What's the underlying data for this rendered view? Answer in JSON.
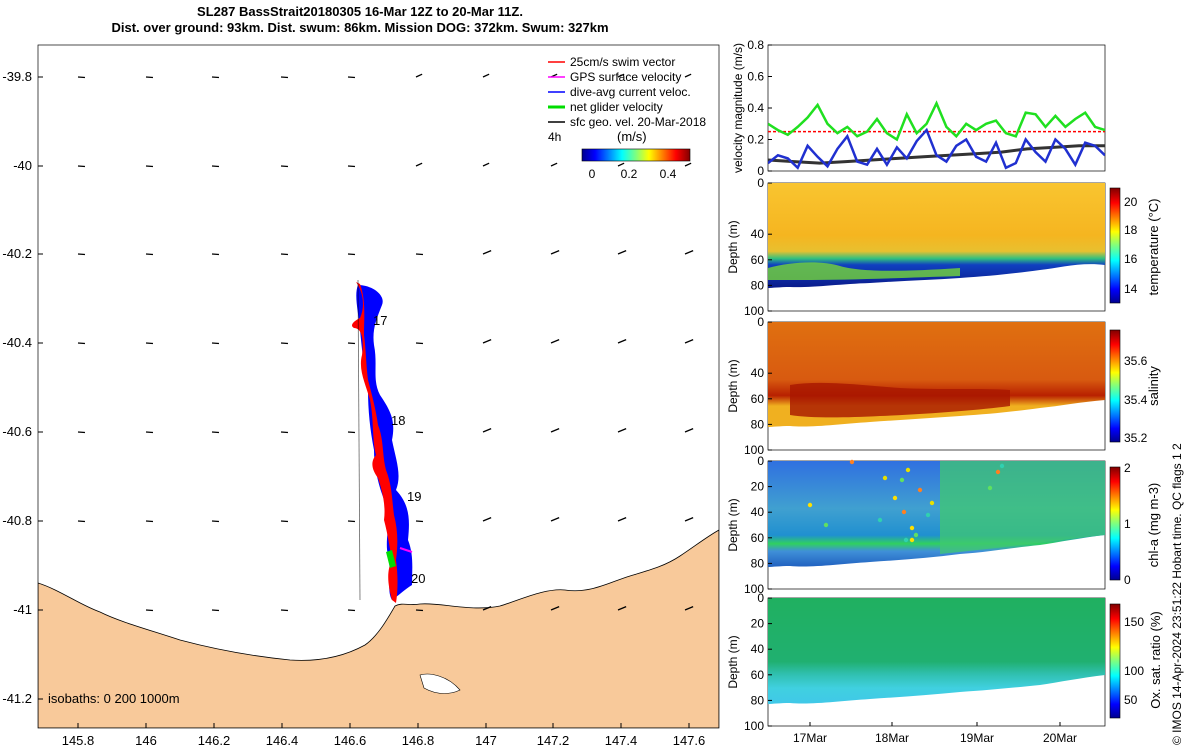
{
  "title": {
    "line1": "SL287 BassStrait20180305 16-Mar 12Z to 20-Mar 11Z.",
    "line2": "Dist. over ground: 93km. Dist. swum: 86km. Mission DOG: 372km. Swum: 327km"
  },
  "map": {
    "legend": {
      "swim_vector": "25cm/s swim vector",
      "gps_velocity": "GPS surface velocity",
      "dive_avg": "dive-avg current veloc.",
      "net_velocity": "net glider velocity",
      "sfc_geo": "sfc geo. vel. 20-Mar-2018",
      "interval": "4h",
      "colorbar_label": "(m/s)",
      "colorbar_ticks": [
        "0",
        "0.2",
        "0.4"
      ]
    },
    "isobaths": "isobaths: 0   200  1000m",
    "day_labels": [
      "17",
      "18",
      "19",
      "20"
    ],
    "x_ticks": [
      "145.8",
      "146",
      "146.2",
      "146.4",
      "146.6",
      "146.8",
      "147",
      "147.2",
      "147.4",
      "147.6"
    ],
    "y_ticks": [
      "-39.8",
      "-40",
      "-40.2",
      "-40.4",
      "-40.6",
      "-40.8",
      "-41",
      "-41.2"
    ],
    "colors": {
      "land": "#f8c99a",
      "swim": "#ff0000",
      "dive": "#0000ff",
      "gps": "#ff00ff",
      "net": "#00dd00"
    }
  },
  "panels": {
    "velocity": {
      "ylabel": "velocity magnitude (m/s)",
      "y_ticks": [
        "0",
        "0.2",
        "0.4",
        "0.6",
        "0.8"
      ],
      "swim_level": 0.25,
      "net_series": [
        0.3,
        0.26,
        0.23,
        0.28,
        0.34,
        0.42,
        0.3,
        0.24,
        0.28,
        0.22,
        0.25,
        0.33,
        0.24,
        0.2,
        0.36,
        0.24,
        0.3,
        0.43,
        0.28,
        0.22,
        0.3,
        0.26,
        0.3,
        0.32,
        0.24,
        0.22,
        0.37,
        0.36,
        0.28,
        0.35,
        0.28,
        0.33,
        0.37,
        0.28,
        0.26
      ],
      "dive_series": [
        0.05,
        0.1,
        0.08,
        0.02,
        0.16,
        0.09,
        0.03,
        0.14,
        0.22,
        0.06,
        0.04,
        0.14,
        0.04,
        0.15,
        0.08,
        0.19,
        0.26,
        0.1,
        0.06,
        0.16,
        0.2,
        0.09,
        0.06,
        0.18,
        0.02,
        0.05,
        0.2,
        0.12,
        0.06,
        0.2,
        0.14,
        0.04,
        0.18,
        0.16,
        0.1
      ],
      "geo_series": [
        0.07,
        0.06,
        0.05,
        0.06,
        0.07,
        0.08,
        0.09,
        0.1,
        0.11,
        0.12,
        0.14,
        0.15,
        0.16,
        0.16
      ]
    },
    "temperature": {
      "label": "temperature (°C)",
      "ticks": [
        "14",
        "16",
        "18",
        "20"
      ]
    },
    "salinity": {
      "label": "salinity",
      "ticks": [
        "35.2",
        "35.4",
        "35.6"
      ]
    },
    "chla": {
      "label": "chl-a (mg m-3)",
      "ticks": [
        "0",
        "1",
        "2"
      ]
    },
    "oxygen": {
      "label": "Ox. sat. ratio (%)",
      "ticks": [
        "50",
        "100",
        "150"
      ]
    },
    "depth_label": "Depth (m)",
    "depth_ticks": [
      "0",
      "20",
      "40",
      "60",
      "80",
      "100"
    ],
    "depth_ticks_short": [
      "0",
      "40",
      "60",
      "80",
      "100"
    ],
    "time_ticks": [
      "17Mar",
      "18Mar",
      "19Mar",
      "20Mar"
    ]
  },
  "imos_note": "© IMOS 14-Apr-2024 23:51:22 Hobart time. QC flags 1  2"
}
